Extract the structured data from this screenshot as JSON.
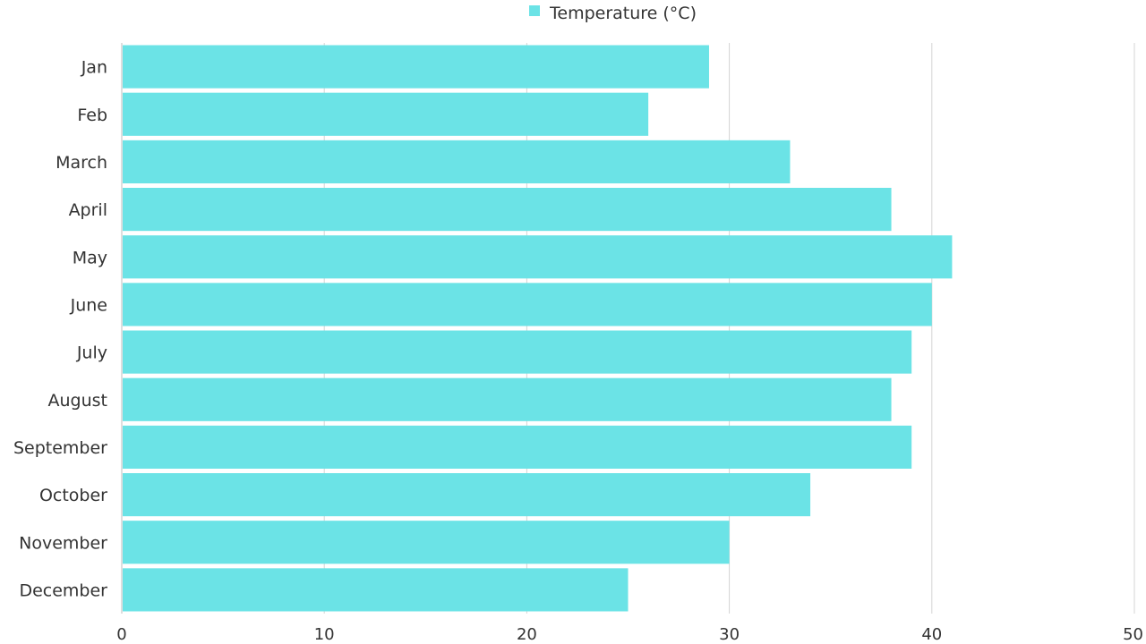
{
  "chart_data": {
    "type": "bar",
    "orientation": "horizontal",
    "categories": [
      "Jan",
      "Feb",
      "March",
      "April",
      "May",
      "June",
      "July",
      "August",
      "September",
      "October",
      "November",
      "December"
    ],
    "series": [
      {
        "name": "Temperature (°C)",
        "values": [
          29,
          26,
          33,
          38,
          41,
          40,
          39,
          38,
          39,
          34,
          30,
          25
        ],
        "color": "#6be3e6"
      }
    ],
    "xlim": [
      0,
      50
    ],
    "xticks": [
      0,
      10,
      20,
      30,
      40,
      50
    ],
    "grid": "vertical",
    "legend_position": "top-center"
  }
}
